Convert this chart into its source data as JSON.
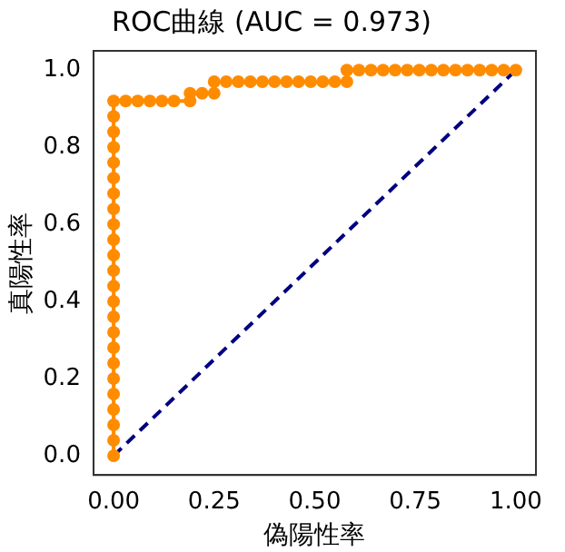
{
  "chart_data": {
    "type": "line",
    "title": "ROC曲線 (AUC = 0.973)",
    "xlabel": "偽陽性率",
    "ylabel": "真陽性率",
    "xlim": [
      -0.05,
      1.05
    ],
    "ylim": [
      -0.05,
      1.05
    ],
    "xticks": [
      {
        "value": 0,
        "label": "0.00"
      },
      {
        "value": 0.25,
        "label": "0.25"
      },
      {
        "value": 0.5,
        "label": "0.50"
      },
      {
        "value": 0.75,
        "label": "0.75"
      },
      {
        "value": 1,
        "label": "1.00"
      }
    ],
    "yticks": [
      {
        "value": 0,
        "label": "0.0"
      },
      {
        "value": 0.2,
        "label": "0.2"
      },
      {
        "value": 0.4,
        "label": "0.4"
      },
      {
        "value": 0.6,
        "label": "0.6"
      },
      {
        "value": 0.8,
        "label": "0.8"
      },
      {
        "value": 1,
        "label": "1.0"
      }
    ],
    "grid": false,
    "legend": false,
    "series": [
      {
        "color": "#ff8c00",
        "marker": "circle",
        "line_style": "solid",
        "x": [
          0,
          0,
          0,
          0,
          0,
          0,
          0,
          0,
          0,
          0,
          0,
          0,
          0,
          0,
          0,
          0,
          0,
          0,
          0,
          0,
          0,
          0,
          0,
          0,
          0.03,
          0.06,
          0.09,
          0.12,
          0.15,
          0.19,
          0.19,
          0.22,
          0.25,
          0.25,
          0.28,
          0.31,
          0.34,
          0.37,
          0.4,
          0.43,
          0.46,
          0.49,
          0.52,
          0.55,
          0.58,
          0.58,
          0.61,
          0.64,
          0.67,
          0.7,
          0.73,
          0.76,
          0.79,
          0.82,
          0.85,
          0.88,
          0.91,
          0.94,
          0.97,
          1.0
        ],
        "values": [
          0,
          0.04,
          0.08,
          0.12,
          0.16,
          0.2,
          0.24,
          0.28,
          0.32,
          0.36,
          0.4,
          0.44,
          0.48,
          0.52,
          0.56,
          0.6,
          0.64,
          0.68,
          0.72,
          0.76,
          0.8,
          0.84,
          0.88,
          0.92,
          0.92,
          0.92,
          0.92,
          0.92,
          0.92,
          0.92,
          0.94,
          0.94,
          0.94,
          0.97,
          0.97,
          0.97,
          0.97,
          0.97,
          0.97,
          0.97,
          0.97,
          0.97,
          0.97,
          0.97,
          0.97,
          1,
          1,
          1,
          1,
          1,
          1,
          1,
          1,
          1,
          1,
          1,
          1,
          1,
          1,
          1
        ]
      },
      {
        "color": "#000080",
        "marker": "none",
        "line_style": "dashed",
        "x": [
          0,
          1
        ],
        "values": [
          0,
          1
        ]
      }
    ]
  }
}
